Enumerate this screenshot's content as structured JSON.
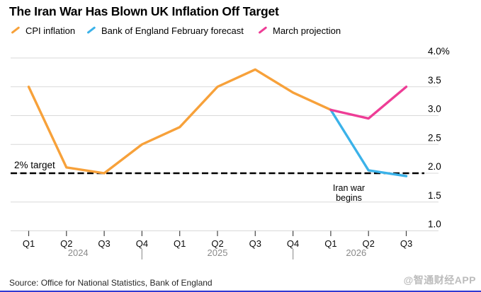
{
  "header": {
    "title": "The Iran War Has Blown UK Inflation Off Target"
  },
  "legend": [
    {
      "label": "CPI inflation",
      "color": "#F7A13A"
    },
    {
      "label": "Bank of England February forecast",
      "color": "#3BB2E9"
    },
    {
      "label": "March projection",
      "color": "#EE3D96"
    }
  ],
  "annotations": {
    "target_label": "2% target",
    "event_line1": "Iran war",
    "event_line2": "begins"
  },
  "footer": {
    "source": "Source: Office for National Statistics, Bank of England",
    "watermark": "@智通财经APP"
  },
  "chart_data": {
    "type": "line",
    "title": "The Iran War Has Blown UK Inflation Off Target",
    "x_categories": [
      "Q1",
      "Q2",
      "Q3",
      "Q4",
      "Q1",
      "Q2",
      "Q3",
      "Q4",
      "Q1",
      "Q2",
      "Q3"
    ],
    "year_labels": [
      "2024",
      "2025",
      "2026"
    ],
    "y_ticks": [
      "4.0%",
      "3.5",
      "3.0",
      "2.5",
      "2.0",
      "1.5",
      "1.0"
    ],
    "y_tick_values": [
      4.0,
      3.5,
      3.0,
      2.5,
      2.0,
      1.5,
      1.0
    ],
    "ylim": [
      1.0,
      4.0
    ],
    "grid": true,
    "legend_position": "top",
    "series": [
      {
        "name": "CPI inflation",
        "color": "#F7A13A",
        "start_index": 0,
        "values": [
          3.5,
          2.1,
          2.0,
          2.5,
          2.8,
          3.5,
          3.8,
          3.4,
          3.1
        ]
      },
      {
        "name": "Bank of England February forecast",
        "color": "#3BB2E9",
        "start_index": 8,
        "values": [
          3.1,
          2.05,
          1.95
        ]
      },
      {
        "name": "March projection",
        "color": "#EE3D96",
        "start_index": 8,
        "values": [
          3.1,
          2.95,
          3.5
        ]
      }
    ],
    "target_line": {
      "value": 2.0,
      "label": "2% target",
      "style": "dashed",
      "color": "#000000"
    },
    "annotation": {
      "text": "Iran war begins",
      "near": "Q1 2026"
    }
  }
}
